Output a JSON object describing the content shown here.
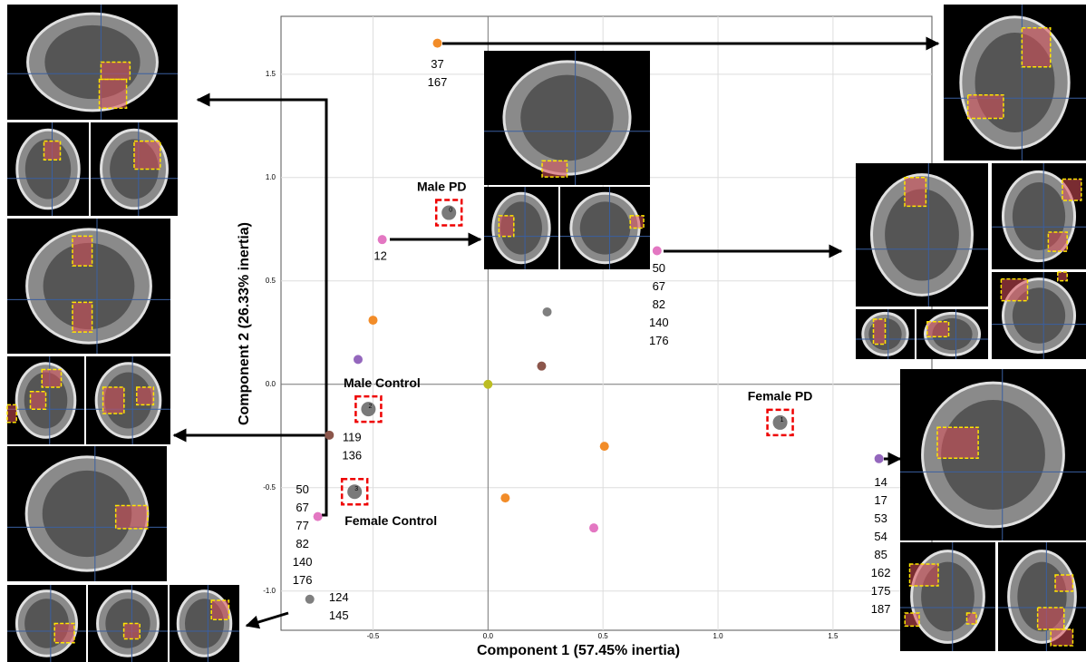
{
  "chart_data": {
    "type": "scatter",
    "x_label": "Component 1 (57.45% inertia)",
    "y_label": "Component 2 (26.33% inertia)",
    "xlim": [
      -0.9,
      1.93
    ],
    "ylim": [
      -1.19,
      1.78
    ],
    "xticks": [
      -0.5,
      {
        "value": 0,
        "label": "0.0"
      },
      0.5,
      {
        "value": 1,
        "label": "1.0"
      },
      1.5
    ],
    "yticks": [
      {
        "value": -1,
        "label": "-1.0"
      },
      -0.5,
      {
        "value": 0,
        "label": "0.0"
      },
      0.5,
      {
        "value": 1,
        "label": "1.0"
      },
      1.5
    ],
    "grid": true,
    "points": [
      {
        "x": -0.22,
        "y": 1.65,
        "color": "#f28c28",
        "ids": [
          37,
          167
        ]
      },
      {
        "x": -0.46,
        "y": 0.7,
        "color": "#e377c2",
        "ids": [
          12
        ]
      },
      {
        "x": 0.735,
        "y": 0.646,
        "color": "#e377c2",
        "ids": [
          50,
          67,
          82,
          140,
          176
        ]
      },
      {
        "x": -0.5,
        "y": 0.31,
        "color": "#f28c28",
        "ids": []
      },
      {
        "x": -0.565,
        "y": 0.12,
        "color": "#9467bd",
        "ids": []
      },
      {
        "x": 0.257,
        "y": 0.35,
        "color": "#7f7f7f",
        "ids": []
      },
      {
        "x": 0.233,
        "y": 0.088,
        "color": "#8c564b",
        "ids": []
      },
      {
        "x": 0,
        "y": 0,
        "color": "#bcbd22",
        "ids": []
      },
      {
        "x": -0.69,
        "y": -0.246,
        "color": "#8c564b",
        "ids": [
          119,
          136
        ]
      },
      {
        "x": 0.506,
        "y": -0.3,
        "color": "#f28c28",
        "ids": []
      },
      {
        "x": 0.075,
        "y": -0.55,
        "color": "#f28c28",
        "ids": []
      },
      {
        "x": 0.46,
        "y": -0.695,
        "color": "#e377c2",
        "ids": []
      },
      {
        "x": -0.74,
        "y": -0.64,
        "color": "#e377c2",
        "ids": [
          50,
          67,
          77,
          82,
          140,
          176
        ]
      },
      {
        "x": -0.775,
        "y": -1.04,
        "color": "#7f7f7f",
        "ids": [
          124,
          145
        ]
      },
      {
        "x": 1.7,
        "y": -0.36,
        "color": "#9467bd",
        "ids": [
          14,
          17,
          53,
          54,
          85,
          162,
          175,
          187
        ]
      }
    ],
    "groups": [
      {
        "id": 0,
        "label": "Male PD",
        "x": -0.17,
        "y": 0.83
      },
      {
        "id": 1,
        "label": "Female PD",
        "x": 1.27,
        "y": -0.185
      },
      {
        "id": 2,
        "label": "Male Control",
        "x": -0.52,
        "y": -0.12
      },
      {
        "id": 3,
        "label": "Female Control",
        "x": -0.58,
        "y": -0.52
      }
    ]
  }
}
